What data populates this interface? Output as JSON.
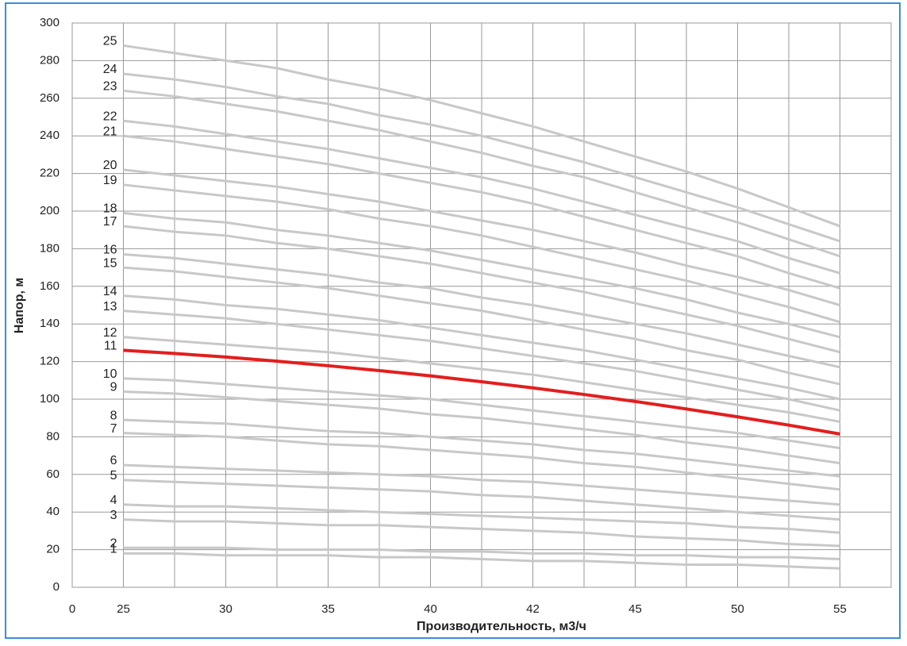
{
  "chart_data": {
    "type": "line",
    "x_label": "Производительность, м3/ч",
    "y_label": "Напор, м",
    "categories": [
      "0",
      "25",
      null,
      "30",
      null,
      "35",
      null,
      "40",
      null,
      "42",
      null,
      "45",
      null,
      "50",
      null,
      "55",
      null
    ],
    "ylim": [
      0,
      300
    ],
    "yticks": [
      0,
      20,
      40,
      60,
      80,
      100,
      120,
      140,
      160,
      180,
      200,
      220,
      240,
      260,
      280,
      300
    ],
    "grid": true,
    "series": [
      {
        "name": "1",
        "color": "#c8c8c8",
        "values": [
          null,
          18,
          18,
          17,
          17,
          17,
          16,
          16,
          15,
          14,
          14,
          13,
          12,
          12,
          11,
          10,
          null
        ]
      },
      {
        "name": "2",
        "color": "#c8c8c8",
        "values": [
          null,
          21,
          21,
          21,
          20,
          20,
          20,
          19,
          19,
          18,
          18,
          17,
          17,
          16,
          16,
          15,
          null
        ]
      },
      {
        "name": "3",
        "color": "#c8c8c8",
        "values": [
          null,
          36,
          35,
          35,
          34,
          33,
          33,
          32,
          31,
          30,
          29,
          27,
          26,
          25,
          23,
          22,
          null
        ]
      },
      {
        "name": "4",
        "color": "#c8c8c8",
        "values": [
          null,
          44,
          43,
          43,
          42,
          41,
          40,
          39,
          38,
          37,
          36,
          35,
          34,
          32,
          31,
          29,
          null
        ]
      },
      {
        "name": "5",
        "color": "#c8c8c8",
        "values": [
          null,
          57,
          56,
          55,
          54,
          53,
          52,
          51,
          49,
          48,
          46,
          44,
          42,
          40,
          38,
          36,
          null
        ]
      },
      {
        "name": "6",
        "color": "#c8c8c8",
        "values": [
          null,
          65,
          64,
          63,
          62,
          61,
          60,
          59,
          57,
          56,
          54,
          52,
          50,
          48,
          46,
          44,
          null
        ]
      },
      {
        "name": "7",
        "color": "#c8c8c8",
        "values": [
          null,
          82,
          81,
          80,
          78,
          76,
          75,
          73,
          71,
          69,
          66,
          64,
          61,
          58,
          55,
          52,
          null
        ]
      },
      {
        "name": "8",
        "color": "#c8c8c8",
        "values": [
          null,
          89,
          88,
          87,
          85,
          83,
          82,
          80,
          78,
          76,
          73,
          71,
          68,
          65,
          62,
          59,
          null
        ]
      },
      {
        "name": "9",
        "color": "#c8c8c8",
        "values": [
          null,
          104,
          103,
          101,
          99,
          97,
          95,
          92,
          90,
          87,
          84,
          81,
          77,
          74,
          70,
          66,
          null
        ]
      },
      {
        "name": "10",
        "color": "#c8c8c8",
        "values": [
          null,
          111,
          110,
          108,
          106,
          104,
          102,
          100,
          97,
          94,
          91,
          88,
          85,
          82,
          78,
          74,
          null
        ]
      },
      {
        "name": "11",
        "color": "#e31e1e",
        "values": [
          null,
          126,
          124.3,
          122.4,
          120.2,
          117.8,
          115.2,
          112.4,
          109.3,
          106,
          102.5,
          98.8,
          94.8,
          90.6,
          86.2,
          81.5,
          null
        ]
      },
      {
        "name": "12",
        "color": "#c8c8c8",
        "values": [
          null,
          133,
          131,
          129,
          127,
          125,
          122,
          119,
          116,
          113,
          109,
          105,
          101,
          97,
          93,
          88,
          null
        ]
      },
      {
        "name": "13",
        "color": "#c8c8c8",
        "values": [
          null,
          147,
          145,
          143,
          140,
          137,
          134,
          131,
          127,
          123,
          119,
          115,
          110,
          105,
          100,
          94,
          null
        ]
      },
      {
        "name": "14",
        "color": "#c8c8c8",
        "values": [
          null,
          155,
          153,
          150,
          148,
          145,
          142,
          138,
          134,
          130,
          126,
          121,
          116,
          111,
          106,
          100,
          null
        ]
      },
      {
        "name": "15",
        "color": "#c8c8c8",
        "values": [
          null,
          170,
          168,
          165,
          162,
          159,
          155,
          151,
          147,
          142,
          137,
          132,
          126,
          121,
          114,
          108,
          null
        ]
      },
      {
        "name": "16",
        "color": "#c8c8c8",
        "values": [
          null,
          177,
          175,
          172,
          169,
          166,
          162,
          159,
          154,
          150,
          145,
          140,
          135,
          129,
          123,
          117,
          null
        ]
      },
      {
        "name": "17",
        "color": "#c8c8c8",
        "values": [
          null,
          192,
          189,
          187,
          183,
          180,
          176,
          172,
          167,
          162,
          157,
          151,
          145,
          139,
          132,
          125,
          null
        ]
      },
      {
        "name": "18",
        "color": "#c8c8c8",
        "values": [
          null,
          199,
          196,
          194,
          190,
          187,
          183,
          179,
          174,
          169,
          164,
          159,
          153,
          146,
          140,
          133,
          null
        ]
      },
      {
        "name": "19",
        "color": "#c8c8c8",
        "values": [
          null,
          214,
          211,
          208,
          205,
          201,
          196,
          192,
          187,
          181,
          175,
          169,
          163,
          156,
          149,
          141,
          null
        ]
      },
      {
        "name": "20",
        "color": "#c8c8c8",
        "values": [
          null,
          222,
          219,
          216,
          213,
          209,
          205,
          200,
          195,
          190,
          184,
          178,
          171,
          165,
          158,
          150,
          null
        ]
      },
      {
        "name": "21",
        "color": "#c8c8c8",
        "values": [
          null,
          240,
          237,
          233,
          229,
          225,
          220,
          215,
          210,
          204,
          197,
          190,
          183,
          176,
          167,
          159,
          null
        ]
      },
      {
        "name": "22",
        "color": "#c8c8c8",
        "values": [
          null,
          248,
          245,
          241,
          237,
          233,
          228,
          223,
          218,
          212,
          205,
          198,
          191,
          184,
          175,
          167,
          null
        ]
      },
      {
        "name": "23",
        "color": "#c8c8c8",
        "values": [
          null,
          264,
          261,
          257,
          253,
          248,
          243,
          237,
          231,
          224,
          218,
          210,
          202,
          194,
          185,
          176,
          null
        ]
      },
      {
        "name": "24",
        "color": "#c8c8c8",
        "values": [
          null,
          273,
          270,
          266,
          261,
          257,
          251,
          246,
          240,
          233,
          226,
          218,
          210,
          202,
          193,
          184,
          null
        ]
      },
      {
        "name": "25",
        "color": "#c8c8c8",
        "values": [
          null,
          288,
          284,
          280,
          276,
          270,
          265,
          259,
          252,
          245,
          237,
          229,
          221,
          212,
          202,
          192,
          null
        ]
      }
    ]
  }
}
